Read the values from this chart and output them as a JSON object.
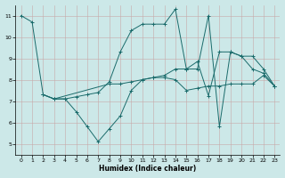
{
  "xlabel": "Humidex (Indice chaleur)",
  "bg_color": "#cce8e8",
  "grid_color": "#b0c8c8",
  "line_color": "#1a6b6b",
  "xlim": [
    -0.5,
    23.5
  ],
  "ylim": [
    4.5,
    11.5
  ],
  "xticks": [
    0,
    1,
    2,
    3,
    4,
    5,
    6,
    7,
    8,
    9,
    10,
    11,
    12,
    13,
    14,
    15,
    16,
    17,
    18,
    19,
    20,
    21,
    22,
    23
  ],
  "yticks": [
    5,
    6,
    7,
    8,
    9,
    10,
    11
  ],
  "curves": [
    {
      "x": [
        0,
        1,
        2,
        3,
        4,
        5,
        6,
        7,
        8,
        9,
        10,
        11,
        12,
        13,
        14,
        15,
        16,
        17,
        18,
        19,
        20,
        21,
        22,
        23
      ],
      "y": [
        11,
        10.7,
        7.3,
        7.1,
        7.1,
        6.5,
        5.8,
        5.1,
        5.7,
        6.3,
        7.5,
        8.0,
        8.1,
        8.1,
        8.0,
        7.5,
        7.6,
        7.7,
        7.7,
        7.8,
        7.8,
        7.8,
        8.2,
        7.7
      ]
    },
    {
      "x": [
        2,
        3,
        4,
        5,
        6,
        7,
        8,
        9,
        10,
        11,
        12,
        13,
        14,
        15,
        16,
        17,
        18,
        19,
        20,
        21,
        22,
        23
      ],
      "y": [
        7.3,
        7.1,
        7.1,
        7.2,
        7.3,
        7.4,
        7.9,
        9.3,
        10.3,
        10.6,
        10.6,
        10.6,
        11.3,
        8.5,
        8.5,
        11.0,
        5.8,
        9.3,
        9.1,
        9.1,
        8.5,
        7.7
      ]
    },
    {
      "x": [
        2,
        3,
        8,
        9,
        10,
        11,
        12,
        13,
        14,
        15,
        16,
        17,
        18,
        19,
        20,
        21,
        22,
        23
      ],
      "y": [
        7.3,
        7.1,
        7.8,
        7.8,
        7.9,
        8.0,
        8.1,
        8.2,
        8.5,
        8.5,
        8.85,
        7.25,
        9.3,
        9.3,
        9.1,
        8.5,
        8.3,
        7.7
      ]
    }
  ]
}
